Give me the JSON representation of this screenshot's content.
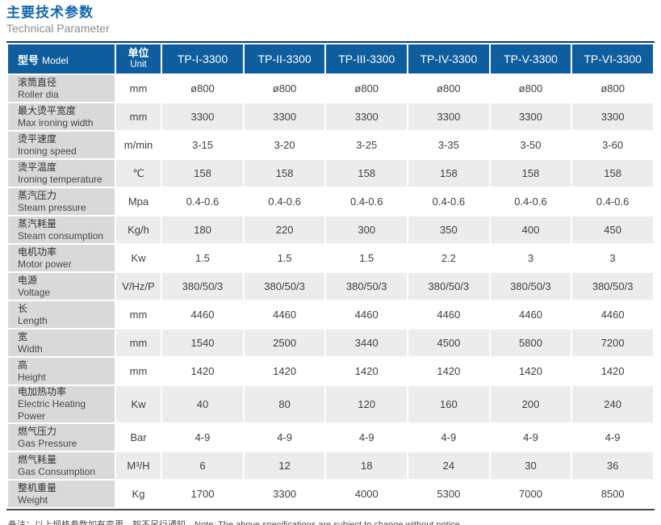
{
  "page": {
    "title_cn": "主要技术参数",
    "title_en": "Technical Parameter",
    "note": "备注：以上规格参数如有变更，恕不另行通知。Note: The above specifications are subject to change without notice."
  },
  "colors": {
    "header_bg": "#0e5d9e",
    "header_top_border": "#0b3d69",
    "label_col_bg": "#d9d9d9",
    "stripe_bg": "#ececec",
    "title_blue": "#1268ae",
    "subtitle_gray": "#8c8c8c",
    "bottom_border": "#4a4a4a"
  },
  "table": {
    "columns": {
      "model": {
        "label_cn": "型号",
        "label_en": "Model"
      },
      "unit": {
        "label_cn": "单位",
        "label_en": "Unit"
      },
      "models": [
        "TP-I-3300",
        "TP-II-3300",
        "TP-III-3300",
        "TP-IV-3300",
        "TP-V-3300",
        "TP-VI-3300"
      ]
    },
    "rows": [
      {
        "label_cn": "滚筒直径",
        "label_en": "Roller dia",
        "unit": "mm",
        "values": [
          "ø800",
          "ø800",
          "ø800",
          "ø800",
          "ø800",
          "ø800"
        ]
      },
      {
        "label_cn": "最大烫平宽度",
        "label_en": "Max ironing width",
        "unit": "mm",
        "values": [
          "3300",
          "3300",
          "3300",
          "3300",
          "3300",
          "3300"
        ]
      },
      {
        "label_cn": "烫平速度",
        "label_en": "Ironing speed",
        "unit": "m/min",
        "values": [
          "3-15",
          "3-20",
          "3-25",
          "3-35",
          "3-50",
          "3-60"
        ]
      },
      {
        "label_cn": "烫平温度",
        "label_en": "Ironing temperature",
        "unit": "℃",
        "values": [
          "158",
          "158",
          "158",
          "158",
          "158",
          "158"
        ]
      },
      {
        "label_cn": "蒸汽压力",
        "label_en": "Steam pressure",
        "unit": "Mpa",
        "values": [
          "0.4-0.6",
          "0.4-0.6",
          "0.4-0.6",
          "0.4-0.6",
          "0.4-0.6",
          "0.4-0.6"
        ]
      },
      {
        "label_cn": "蒸汽耗量",
        "label_en": "Steam consumption",
        "unit": "Kg/h",
        "values": [
          "180",
          "220",
          "300",
          "350",
          "400",
          "450"
        ]
      },
      {
        "label_cn": "电机功率",
        "label_en": "Motor power",
        "unit": "Kw",
        "values": [
          "1.5",
          "1.5",
          "1.5",
          "2.2",
          "3",
          "3"
        ]
      },
      {
        "label_cn": "电源",
        "label_en": "Voltage",
        "unit": "V/Hz/P",
        "values": [
          "380/50/3",
          "380/50/3",
          "380/50/3",
          "380/50/3",
          "380/50/3",
          "380/50/3"
        ]
      },
      {
        "label_cn": "长",
        "label_en": "Length",
        "unit": "mm",
        "values": [
          "4460",
          "4460",
          "4460",
          "4460",
          "4460",
          "4460"
        ]
      },
      {
        "label_cn": "宽",
        "label_en": "Width",
        "unit": "mm",
        "values": [
          "1540",
          "2500",
          "3440",
          "4500",
          "5800",
          "7200"
        ]
      },
      {
        "label_cn": "高",
        "label_en": "Height",
        "unit": "mm",
        "values": [
          "1420",
          "1420",
          "1420",
          "1420",
          "1420",
          "1420"
        ]
      },
      {
        "label_cn": "电加热功率",
        "label_en": "Electric Heating Power",
        "unit": "Kw",
        "values": [
          "40",
          "80",
          "120",
          "160",
          "200",
          "240"
        ]
      },
      {
        "label_cn": "燃气压力",
        "label_en": "Gas Pressure",
        "unit": "Bar",
        "values": [
          "4-9",
          "4-9",
          "4-9",
          "4-9",
          "4-9",
          "4-9"
        ]
      },
      {
        "label_cn": "燃气耗量",
        "label_en": "Gas Consumption",
        "unit": "M³/H",
        "values": [
          "6",
          "12",
          "18",
          "24",
          "30",
          "36"
        ]
      },
      {
        "label_cn": "整机重量",
        "label_en": "Weight",
        "unit": "Kg",
        "values": [
          "1700",
          "3300",
          "4000",
          "5300",
          "7000",
          "8500"
        ]
      }
    ]
  }
}
